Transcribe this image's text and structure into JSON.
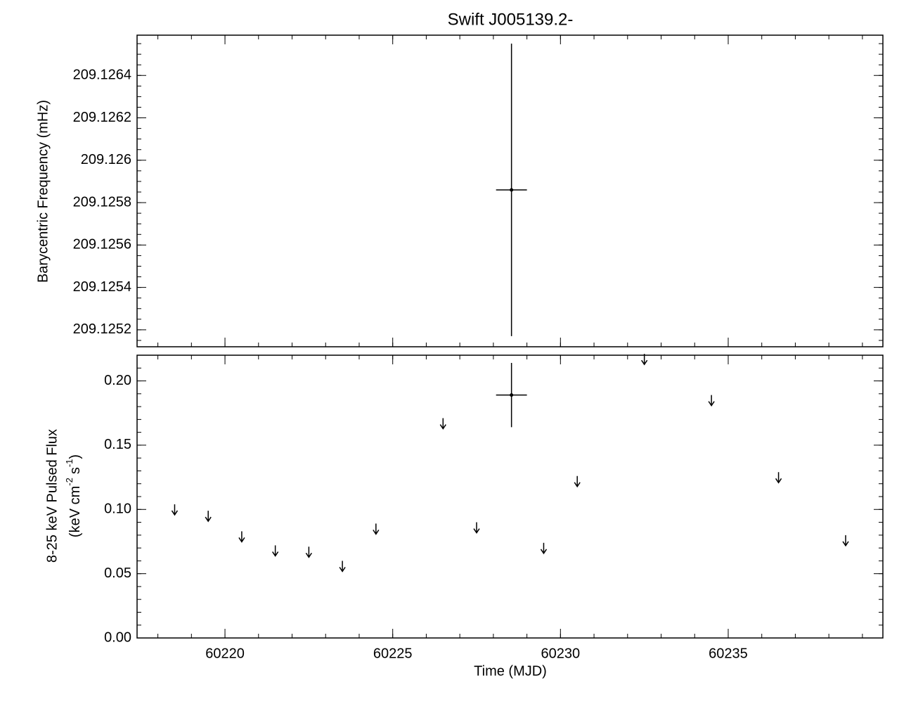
{
  "chart_data": [
    {
      "type": "errorbar",
      "title": "Swift J005139.2-",
      "ylabel": "Barycentric Frequency (mHz)",
      "sharex": true,
      "ylim": [
        209.12512,
        209.12659
      ],
      "yticks": [
        209.1252,
        209.1254,
        209.1256,
        209.1258,
        209.126,
        209.1262,
        209.1264
      ],
      "yminor": 4,
      "xminor": 5,
      "x": [
        60228.54
      ],
      "values": [
        209.12586
      ],
      "xerr": [
        0.46
      ],
      "yerr": [
        0.00069
      ]
    },
    {
      "type": "errorbar",
      "xlabel": "Time (MJD)",
      "ylabel": "8-25 keV Pulsed Flux",
      "ylabel_units": [
        "(keV cm",
        "-2",
        "s",
        "-1",
        ")"
      ],
      "xlim": [
        60217.38,
        60239.61
      ],
      "xticks": [
        60220,
        60225,
        60230,
        60235
      ],
      "ylim": [
        0,
        0.22
      ],
      "yticks": [
        {
          "value": 0,
          "label": "0.00"
        },
        {
          "value": 0.05,
          "label": "0.05"
        },
        {
          "value": 0.1,
          "label": "0.10"
        },
        {
          "value": 0.15,
          "label": "0.15"
        },
        {
          "value": 0.2,
          "label": "0.20"
        }
      ],
      "yminor": 5,
      "xminor": 5,
      "x": [
        60228.54
      ],
      "values": [
        0.189
      ],
      "xerr": [
        0.46
      ],
      "yerr": [
        0.025
      ],
      "upper_limits": {
        "x": [
          60218.5,
          60219.5,
          60220.5,
          60221.5,
          60222.5,
          60223.5,
          60224.5,
          60226.5,
          60227.5,
          60229.5,
          60230.5,
          60232.5,
          60234.5,
          60236.5,
          60238.5
        ],
        "values": [
          0.104,
          0.099,
          0.083,
          0.072,
          0.071,
          0.06,
          0.089,
          0.171,
          0.09,
          0.074,
          0.126,
          0.221,
          0.189,
          0.129,
          0.08
        ]
      }
    }
  ]
}
